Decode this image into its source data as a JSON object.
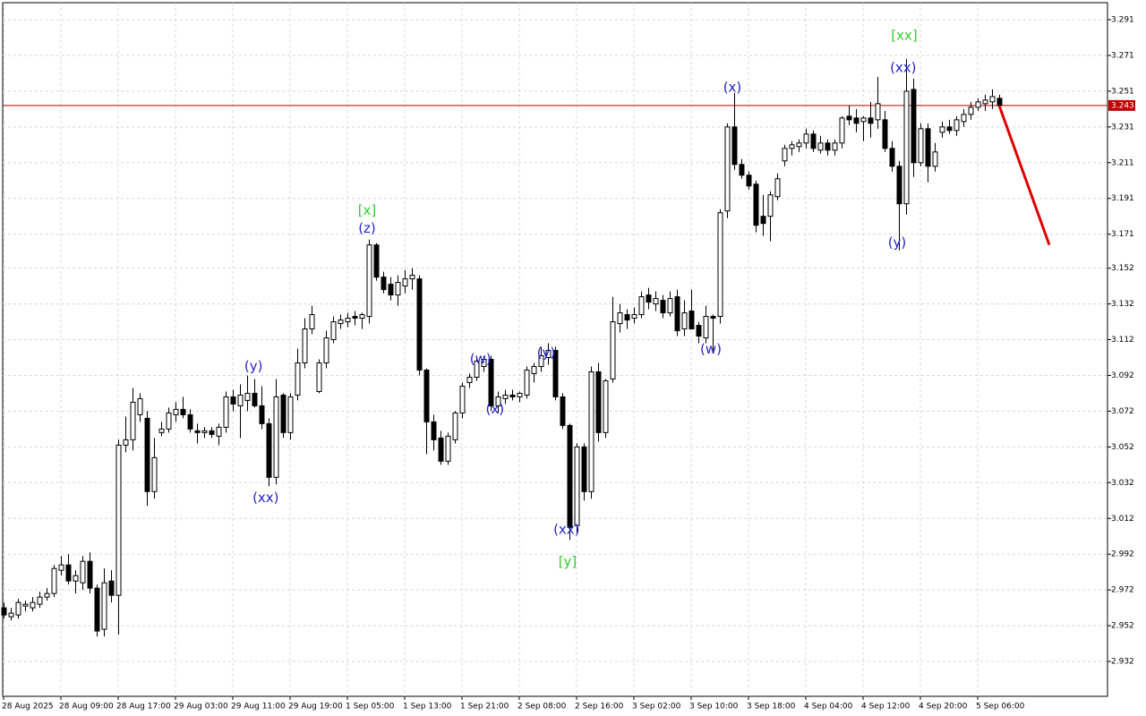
{
  "chart_data": {
    "type": "candlestick",
    "up_color": "#ffffff",
    "down_color": "#000000",
    "grid": true,
    "xlim": [
      -0.125,
      154.125
    ],
    "ylim": [
      2.9125,
      3.3005
    ],
    "yticks": [
      3.291,
      3.271,
      3.251,
      3.231,
      3.211,
      3.191,
      3.171,
      3.152,
      3.132,
      3.112,
      3.092,
      3.072,
      3.052,
      3.032,
      3.012,
      2.992,
      2.972,
      2.952,
      2.932
    ],
    "xticks": [
      {
        "value": 0,
        "label": "28 Aug 2025"
      },
      {
        "value": 8,
        "label": "28 Aug 09:00"
      },
      {
        "value": 16,
        "label": "28 Aug 17:00"
      },
      {
        "value": 24,
        "label": "29 Aug 03:00"
      },
      {
        "value": 32,
        "label": "29 Aug 11:00"
      },
      {
        "value": 40,
        "label": "29 Aug 19:00"
      },
      {
        "value": 48,
        "label": "1 Sep 05:00"
      },
      {
        "value": 56,
        "label": "1 Sep 13:00"
      },
      {
        "value": 64,
        "label": "1 Sep 21:00"
      },
      {
        "value": 72,
        "label": "2 Sep 08:00"
      },
      {
        "value": 80,
        "label": "2 Sep 16:00"
      },
      {
        "value": 88,
        "label": "3 Sep 02:00"
      },
      {
        "value": 96,
        "label": "3 Sep 10:00"
      },
      {
        "value": 104,
        "label": "3 Sep 18:00"
      },
      {
        "value": 112,
        "label": "4 Sep 04:00"
      },
      {
        "value": 120,
        "label": "4 Sep 12:00"
      },
      {
        "value": 128,
        "label": "4 Sep 20:00"
      },
      {
        "value": 136,
        "label": "5 Sep 06:00"
      }
    ],
    "open": [
      2.962,
      2.957,
      2.958,
      2.963,
      2.962,
      2.964,
      2.968,
      2.97,
      2.983,
      2.986,
      2.977,
      2.976,
      2.988,
      2.973,
      2.95,
      2.977,
      2.969,
      3.053,
      3.056,
      3.07,
      3.068,
      3.027,
      3.06,
      3.062,
      3.07,
      3.073,
      3.07,
      3.061,
      3.06,
      3.061,
      3.058,
      3.063,
      3.08,
      3.075,
      3.078,
      3.082,
      3.075,
      3.065,
      3.035,
      3.081,
      3.06,
      3.081,
      3.099,
      3.118,
      3.083,
      3.099,
      3.112,
      3.121,
      3.122,
      3.125,
      3.124,
      3.125,
      3.165,
      3.147,
      3.143,
      3.137,
      3.142,
      3.146,
      3.146,
      3.095,
      3.066,
      3.057,
      3.044,
      3.056,
      3.071,
      3.088,
      3.091,
      3.097,
      3.101,
      3.075,
      3.079,
      3.081,
      3.08,
      3.081,
      3.093,
      3.097,
      3.102,
      3.106,
      3.08,
      3.064,
      3.008,
      3.052,
      3.027,
      3.094,
      3.06,
      3.09,
      3.121,
      3.126,
      3.124,
      3.126,
      3.137,
      3.132,
      3.134,
      3.127,
      3.136,
      3.118,
      3.128,
      3.12,
      3.113,
      3.125,
      3.125,
      3.184,
      3.231,
      3.21,
      3.204,
      3.199,
      3.181,
      3.181,
      3.192,
      3.212,
      3.219,
      3.22,
      3.222,
      3.227,
      3.218,
      3.222,
      3.218,
      3.222,
      3.237,
      3.236,
      3.234,
      3.236,
      3.235,
      3.235,
      3.219,
      3.209,
      3.188,
      3.252,
      3.211,
      3.23,
      3.209,
      3.228,
      3.231,
      3.229,
      3.234,
      3.238,
      3.242,
      3.244,
      3.245,
      3.247
    ],
    "high": [
      2.965,
      2.962,
      2.967,
      2.966,
      2.968,
      2.971,
      2.973,
      2.986,
      2.991,
      2.992,
      2.983,
      2.991,
      2.993,
      2.975,
      2.984,
      2.983,
      3.056,
      3.069,
      3.085,
      3.082,
      3.072,
      3.057,
      3.066,
      3.074,
      3.077,
      3.08,
      3.073,
      3.065,
      3.063,
      3.063,
      3.065,
      3.083,
      3.084,
      3.087,
      3.092,
      3.09,
      3.086,
      3.068,
      3.09,
      3.082,
      3.082,
      3.107,
      3.124,
      3.131,
      3.101,
      3.117,
      3.125,
      3.126,
      3.127,
      3.128,
      3.127,
      3.168,
      3.166,
      3.15,
      3.147,
      3.148,
      3.151,
      3.152,
      3.148,
      3.096,
      3.07,
      3.061,
      3.06,
      3.072,
      3.088,
      3.093,
      3.103,
      3.103,
      3.103,
      3.083,
      3.084,
      3.084,
      3.083,
      3.097,
      3.099,
      3.108,
      3.11,
      3.108,
      3.082,
      3.065,
      3.054,
      3.054,
      3.097,
      3.099,
      3.09,
      3.136,
      3.132,
      3.129,
      3.13,
      3.139,
      3.141,
      3.139,
      3.137,
      3.139,
      3.14,
      3.134,
      3.14,
      3.122,
      3.131,
      3.126,
      3.185,
      3.233,
      3.25,
      3.213,
      3.206,
      3.201,
      3.193,
      3.195,
      3.205,
      3.221,
      3.223,
      3.224,
      3.23,
      3.229,
      3.226,
      3.224,
      3.224,
      3.237,
      3.243,
      3.241,
      3.237,
      3.245,
      3.259,
      3.24,
      3.223,
      3.212,
      3.269,
      3.258,
      3.233,
      3.233,
      3.222,
      3.234,
      3.235,
      3.237,
      3.241,
      3.245,
      3.247,
      3.249,
      3.252,
      3.249
    ],
    "low": [
      2.956,
      2.955,
      2.956,
      2.96,
      2.96,
      2.962,
      2.966,
      2.968,
      2.98,
      2.975,
      2.97,
      2.972,
      2.97,
      2.946,
      2.946,
      2.965,
      2.947,
      3.049,
      3.05,
      3.066,
      3.019,
      3.023,
      3.058,
      3.06,
      3.066,
      3.068,
      3.06,
      3.054,
      3.057,
      3.057,
      3.053,
      3.06,
      3.072,
      3.057,
      3.072,
      3.074,
      3.062,
      3.03,
      3.031,
      3.057,
      3.056,
      3.078,
      3.096,
      3.115,
      3.082,
      3.096,
      3.11,
      3.118,
      3.119,
      3.12,
      3.118,
      3.121,
      3.145,
      3.138,
      3.134,
      3.131,
      3.138,
      3.14,
      3.092,
      3.048,
      3.05,
      3.042,
      3.042,
      3.054,
      3.068,
      3.085,
      3.089,
      3.094,
      3.072,
      3.071,
      3.076,
      3.078,
      3.077,
      3.079,
      3.088,
      3.094,
      3.098,
      3.078,
      3.062,
      3.0,
      3.004,
      3.022,
      3.023,
      3.055,
      3.057,
      3.088,
      3.116,
      3.118,
      3.121,
      3.124,
      3.129,
      3.128,
      3.124,
      3.125,
      3.114,
      3.114,
      3.118,
      3.11,
      3.11,
      3.106,
      3.121,
      3.18,
      3.207,
      3.202,
      3.196,
      3.172,
      3.17,
      3.167,
      3.19,
      3.209,
      3.215,
      3.217,
      3.219,
      3.217,
      3.216,
      3.215,
      3.215,
      3.219,
      3.232,
      3.228,
      3.223,
      3.225,
      3.23,
      3.217,
      3.206,
      3.162,
      3.182,
      3.203,
      3.209,
      3.2,
      3.206,
      3.225,
      3.227,
      3.226,
      3.231,
      3.235,
      3.24,
      3.24,
      3.241,
      3.242
    ],
    "close": [
      2.958,
      2.959,
      2.965,
      2.964,
      2.965,
      2.968,
      2.97,
      2.984,
      2.986,
      2.977,
      2.98,
      2.988,
      2.973,
      2.949,
      2.976,
      2.969,
      3.053,
      3.056,
      3.077,
      3.079,
      3.027,
      3.046,
      3.062,
      3.071,
      3.073,
      3.07,
      3.062,
      3.06,
      3.061,
      3.059,
      3.063,
      3.08,
      3.076,
      3.081,
      3.082,
      3.075,
      3.065,
      3.035,
      3.08,
      3.06,
      3.08,
      3.099,
      3.118,
      3.126,
      3.099,
      3.113,
      3.122,
      3.123,
      3.124,
      3.124,
      3.126,
      3.165,
      3.147,
      3.14,
      3.137,
      3.144,
      3.146,
      3.148,
      3.095,
      3.066,
      3.056,
      3.044,
      3.058,
      3.071,
      3.086,
      3.091,
      3.1,
      3.101,
      3.075,
      3.08,
      3.081,
      3.08,
      3.082,
      3.095,
      3.097,
      3.103,
      3.106,
      3.08,
      3.064,
      3.007,
      3.052,
      3.027,
      3.094,
      3.06,
      3.089,
      3.122,
      3.127,
      3.123,
      3.126,
      3.136,
      3.133,
      3.135,
      3.127,
      3.135,
      3.117,
      3.127,
      3.118,
      3.114,
      3.125,
      3.124,
      3.183,
      3.231,
      3.21,
      3.204,
      3.198,
      3.176,
      3.177,
      3.193,
      3.202,
      3.219,
      3.221,
      3.222,
      3.227,
      3.219,
      3.222,
      3.218,
      3.222,
      3.236,
      3.235,
      3.233,
      3.236,
      3.233,
      3.244,
      3.219,
      3.209,
      3.188,
      3.251,
      3.211,
      3.23,
      3.209,
      3.217,
      3.231,
      3.229,
      3.235,
      3.238,
      3.242,
      3.245,
      3.246,
      3.248,
      3.243
    ],
    "price_line": {
      "value": 3.243,
      "color": "#c00000"
    },
    "forecast": {
      "x": [
        139,
        146
      ],
      "y": [
        3.243,
        3.165
      ],
      "color": "#e00000"
    },
    "annotations": [
      {
        "text": "[xx]",
        "x": 125.75,
        "y": 3.282,
        "color": "#33cc33"
      },
      {
        "text": "(xx)",
        "x": 125.6,
        "y": 3.264,
        "color": "#2424c8"
      },
      {
        "text": "(x)",
        "x": 101.75,
        "y": 3.253,
        "color": "#2424c8"
      },
      {
        "text": "(y)",
        "x": 124.75,
        "y": 3.166,
        "color": "#2424c8"
      },
      {
        "text": "[x]",
        "x": 50.75,
        "y": 3.184,
        "color": "#33cc33"
      },
      {
        "text": "(z)",
        "x": 50.75,
        "y": 3.174,
        "color": "#2424c8"
      },
      {
        "text": "(y)",
        "x": 34.9,
        "y": 3.097,
        "color": "#2424c8"
      },
      {
        "text": "(xx)",
        "x": 36.6,
        "y": 3.0235,
        "color": "#2424c8"
      },
      {
        "text": "(w)",
        "x": 66.6,
        "y": 3.101,
        "color": "#2424c8"
      },
      {
        "text": "(x)",
        "x": 68.6,
        "y": 3.073,
        "color": "#2424c8"
      },
      {
        "text": "(y)",
        "x": 75.75,
        "y": 3.1045,
        "color": "#2424c8"
      },
      {
        "text": "(xx)",
        "x": 78.6,
        "y": 3.0055,
        "color": "#2424c8"
      },
      {
        "text": "[y]",
        "x": 78.75,
        "y": 2.9875,
        "color": "#33cc33"
      },
      {
        "text": "(w)",
        "x": 98.75,
        "y": 3.1065,
        "color": "#2424c8"
      }
    ]
  }
}
